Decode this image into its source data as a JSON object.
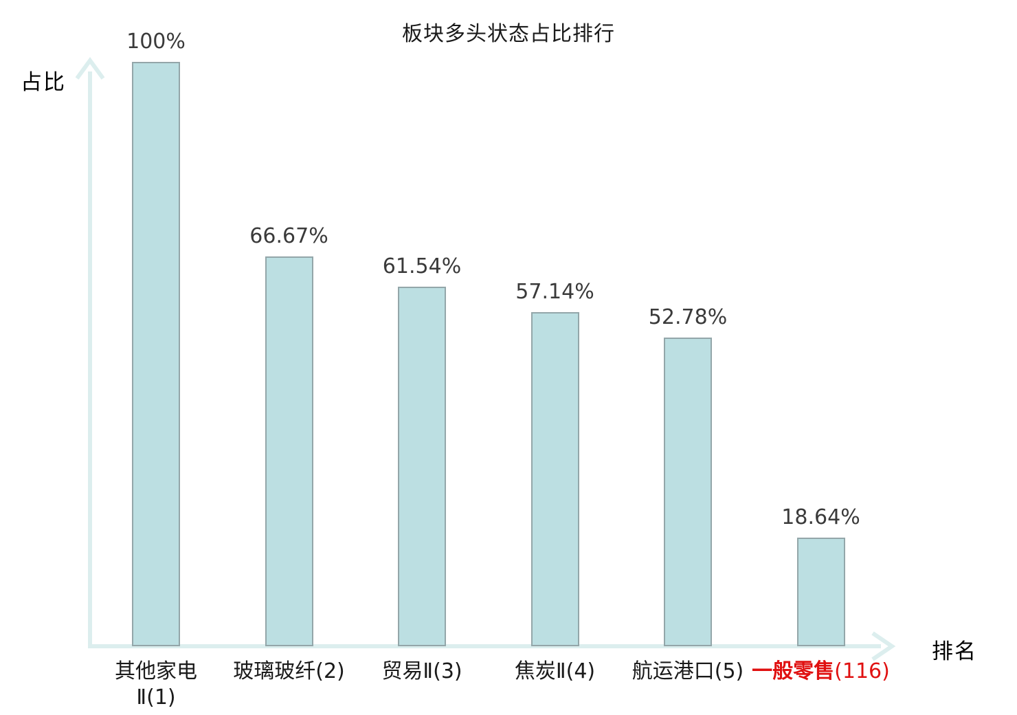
{
  "title": "板块多头状态占比排行",
  "axes": {
    "y_label": "占比",
    "x_label": "排名"
  },
  "colors": {
    "bar_fill": "#bcdfe2",
    "bar_border": "#93a6a9",
    "axis_line": "#dceeee",
    "value_label_text": "#3a3a3a",
    "category_text": "#1a1a1a",
    "highlight_text": "#e01111"
  },
  "chart_data": {
    "type": "bar",
    "title": "板块多头状态占比排行",
    "xlabel": "排名",
    "ylabel": "占比",
    "categories": [
      "其他家电\nⅡ(1)",
      "玻璃玻纤(2)",
      "贸易Ⅱ(3)",
      "焦炭Ⅱ(4)",
      "航运港口(5)",
      "一般零售(116)"
    ],
    "values": [
      100,
      66.67,
      61.54,
      57.14,
      52.78,
      18.64
    ],
    "value_labels": [
      "100%",
      "66.67%",
      "61.54%",
      "57.14%",
      "52.78%",
      "18.64%"
    ],
    "highlight_index": 5,
    "ylim": [
      0,
      100
    ],
    "grid": false,
    "legend": null
  }
}
